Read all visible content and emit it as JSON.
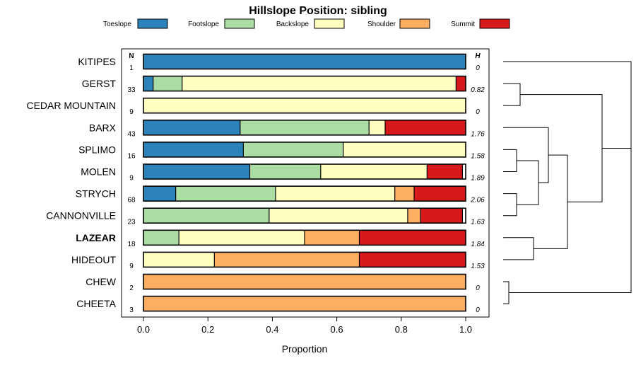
{
  "chart_data": {
    "type": "bar",
    "orientation": "horizontal",
    "stacked": true,
    "title": "Hillslope Position: sibling",
    "xlabel": "Proportion",
    "xlim": [
      0,
      1
    ],
    "xticks": [
      "0.0",
      "0.2",
      "0.4",
      "0.6",
      "0.8",
      "1.0"
    ],
    "n_header": "N",
    "h_header": "H",
    "legend": [
      {
        "name": "Toeslope",
        "color": "#2b83ba"
      },
      {
        "name": "Footslope",
        "color": "#abdda4"
      },
      {
        "name": "Backslope",
        "color": "#ffffbf"
      },
      {
        "name": "Shoulder",
        "color": "#fdae61"
      },
      {
        "name": "Summit",
        "color": "#d7191c"
      }
    ],
    "rows": [
      {
        "label": "KITIPES",
        "n": "1",
        "h": "0",
        "bold": false,
        "values": [
          1.0,
          0,
          0,
          0,
          0
        ]
      },
      {
        "label": "GERST",
        "n": "33",
        "h": "0.82",
        "bold": false,
        "values": [
          0.03,
          0.09,
          0.85,
          0,
          0.03
        ]
      },
      {
        "label": "CEDAR MOUNTAIN",
        "n": "9",
        "h": "0",
        "bold": false,
        "values": [
          0,
          0,
          1.0,
          0,
          0
        ]
      },
      {
        "label": "BARX",
        "n": "43",
        "h": "1.76",
        "bold": false,
        "values": [
          0.3,
          0.4,
          0.05,
          0,
          0.25
        ]
      },
      {
        "label": "SPLIMO",
        "n": "16",
        "h": "1.58",
        "bold": false,
        "values": [
          0.31,
          0.31,
          0.38,
          0,
          0
        ]
      },
      {
        "label": "MOLEN",
        "n": "9",
        "h": "1.89",
        "bold": false,
        "values": [
          0.33,
          0.22,
          0.33,
          0,
          0.11
        ]
      },
      {
        "label": "STRYCH",
        "n": "68",
        "h": "2.06",
        "bold": false,
        "values": [
          0.1,
          0.31,
          0.37,
          0.06,
          0.16
        ]
      },
      {
        "label": "CANNONVILLE",
        "n": "23",
        "h": "1.63",
        "bold": false,
        "values": [
          0,
          0.39,
          0.43,
          0.04,
          0.13
        ]
      },
      {
        "label": "LAZEAR",
        "n": "18",
        "h": "1.84",
        "bold": true,
        "values": [
          0,
          0.11,
          0.39,
          0.17,
          0.33
        ]
      },
      {
        "label": "HIDEOUT",
        "n": "9",
        "h": "1.53",
        "bold": false,
        "values": [
          0,
          0,
          0.22,
          0.45,
          0.33
        ]
      },
      {
        "label": "CHEW",
        "n": "2",
        "h": "0",
        "bold": false,
        "values": [
          0,
          0,
          0,
          1.0,
          0
        ]
      },
      {
        "label": "CHEETA",
        "n": "3",
        "h": "0",
        "bold": false,
        "values": [
          0,
          0,
          0,
          1.0,
          0
        ]
      }
    ]
  }
}
